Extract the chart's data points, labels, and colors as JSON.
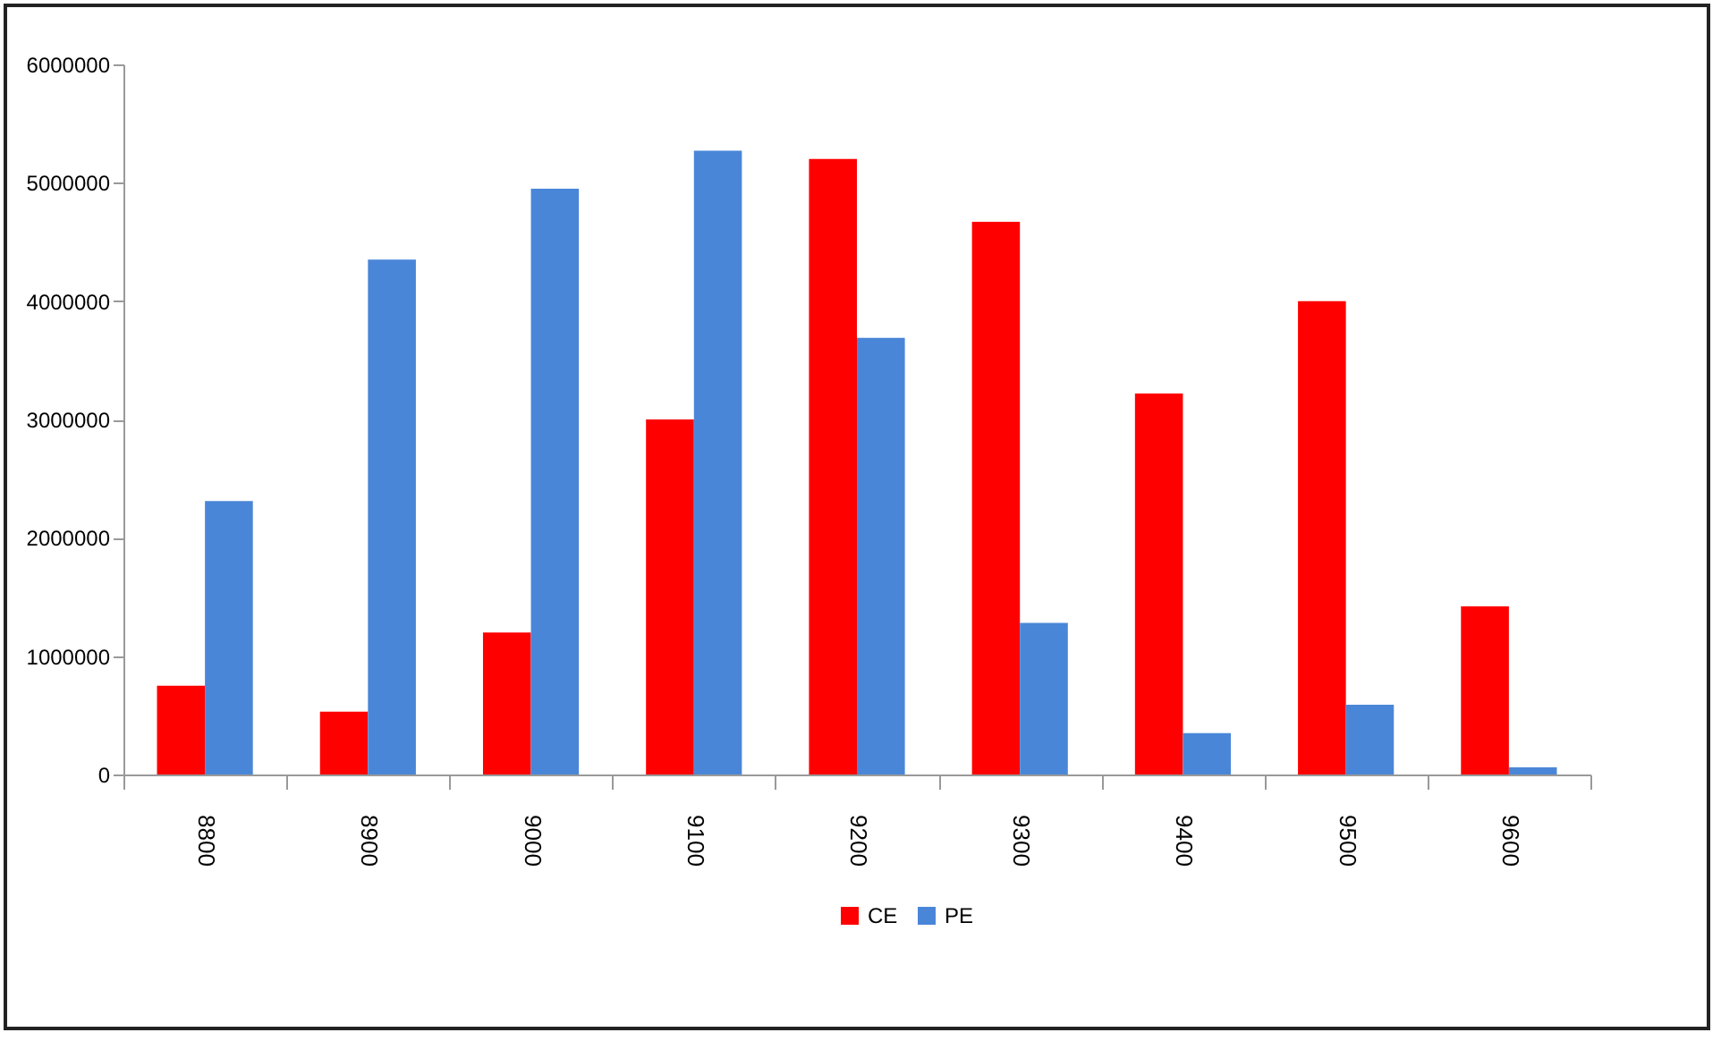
{
  "chart_data": {
    "type": "bar",
    "categories": [
      "8800",
      "8900",
      "9000",
      "9100",
      "9200",
      "9300",
      "9400",
      "9500",
      "9600"
    ],
    "series": [
      {
        "name": "CE",
        "color": "#ff0000",
        "values": [
          750000,
          530000,
          1200000,
          3000000,
          5200000,
          4670000,
          3220000,
          4000000,
          1420000
        ]
      },
      {
        "name": "PE",
        "color": "#4a86d8",
        "values": [
          2310000,
          4350000,
          4950000,
          5270000,
          3690000,
          1280000,
          350000,
          590000,
          60000
        ]
      }
    ],
    "ylim": [
      0,
      6000000
    ],
    "yticks": [
      0,
      1000000,
      2000000,
      3000000,
      4000000,
      5000000,
      6000000
    ],
    "grid": false,
    "legend": "bottom"
  }
}
